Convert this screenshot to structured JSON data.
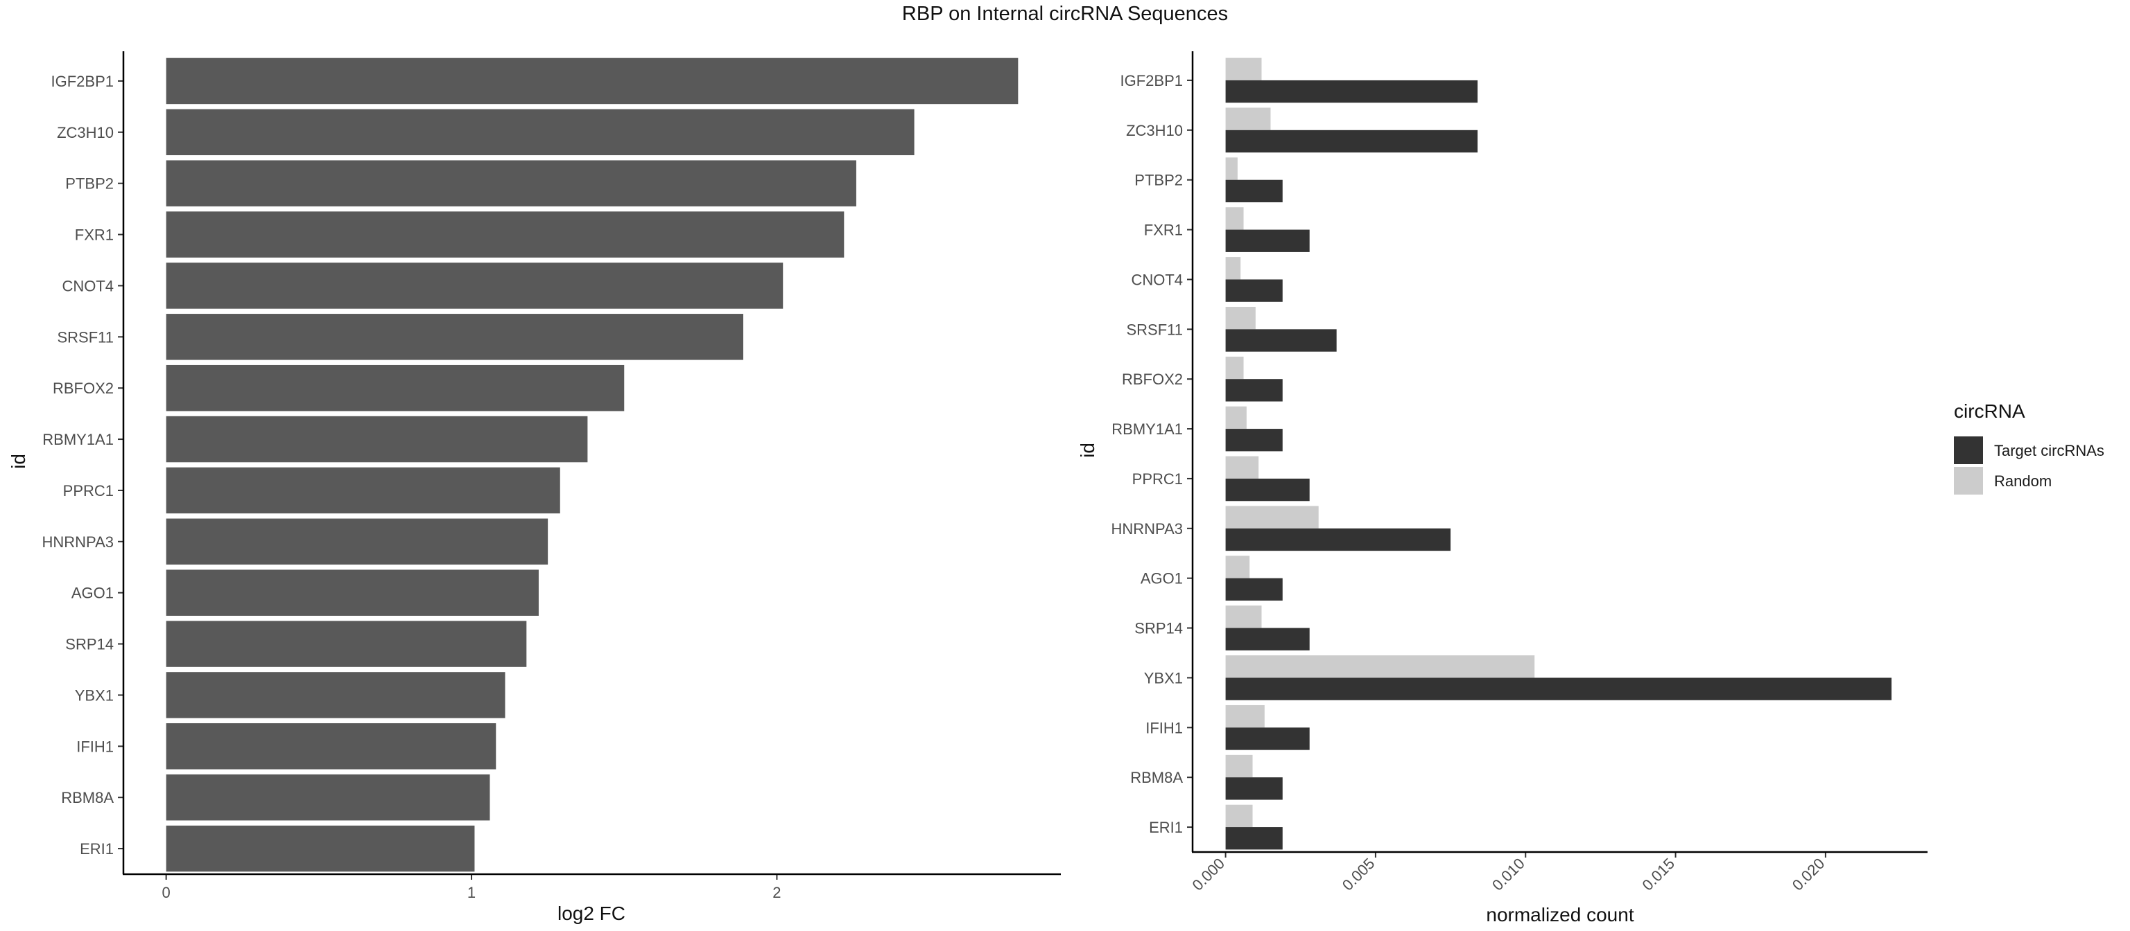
{
  "figure_title": "RBP on Internal circRNA Sequences",
  "chart_data": [
    {
      "type": "bar",
      "orientation": "horizontal",
      "title": "",
      "xlabel": "log2 FC",
      "ylabel": "id",
      "categories": [
        "IGF2BP1",
        "ZC3H10",
        "PTBP2",
        "FXR1",
        "CNOT4",
        "SRSF11",
        "RBFOX2",
        "RBMY1A1",
        "PPRC1",
        "HNRNPA3",
        "AGO1",
        "SRP14",
        "YBX1",
        "IFIH1",
        "RBM8A",
        "ERI1"
      ],
      "values": [
        2.79,
        2.45,
        2.26,
        2.22,
        2.02,
        1.89,
        1.5,
        1.38,
        1.29,
        1.25,
        1.22,
        1.18,
        1.11,
        1.08,
        1.06,
        1.01
      ],
      "xlim": [
        -0.14,
        2.93
      ],
      "xticks": [
        0,
        1,
        2
      ],
      "xtick_labels": [
        "0",
        "1",
        "2"
      ],
      "grid": false,
      "bar_color": "#595959"
    },
    {
      "type": "bar",
      "orientation": "horizontal",
      "grouped": true,
      "title": "",
      "xlabel": "normalized count",
      "ylabel": "id",
      "categories": [
        "IGF2BP1",
        "ZC3H10",
        "PTBP2",
        "FXR1",
        "CNOT4",
        "SRSF11",
        "RBFOX2",
        "RBMY1A1",
        "PPRC1",
        "HNRNPA3",
        "AGO1",
        "SRP14",
        "YBX1",
        "IFIH1",
        "RBM8A",
        "ERI1"
      ],
      "series": [
        {
          "name": "Target circRNAs",
          "color": "#333333",
          "values": [
            0.0084,
            0.0084,
            0.0019,
            0.0028,
            0.0019,
            0.0037,
            0.0019,
            0.0019,
            0.0028,
            0.0075,
            0.0019,
            0.0028,
            0.0222,
            0.0028,
            0.0019,
            0.0019
          ]
        },
        {
          "name": "Random",
          "color": "#cccccc",
          "values": [
            0.0012,
            0.0015,
            0.0004,
            0.0006,
            0.0005,
            0.001,
            0.0006,
            0.0007,
            0.0011,
            0.0031,
            0.0008,
            0.0012,
            0.0103,
            0.0013,
            0.0009,
            0.0009
          ]
        }
      ],
      "xlim": [
        -0.0011,
        0.0234
      ],
      "xticks": [
        0,
        0.005,
        0.01,
        0.015,
        0.02
      ],
      "xtick_labels": [
        "0.000",
        "0.005",
        "0.010",
        "0.015",
        "0.020"
      ],
      "grid": false,
      "legend": {
        "title": "circRNA",
        "placement": "right"
      }
    }
  ]
}
